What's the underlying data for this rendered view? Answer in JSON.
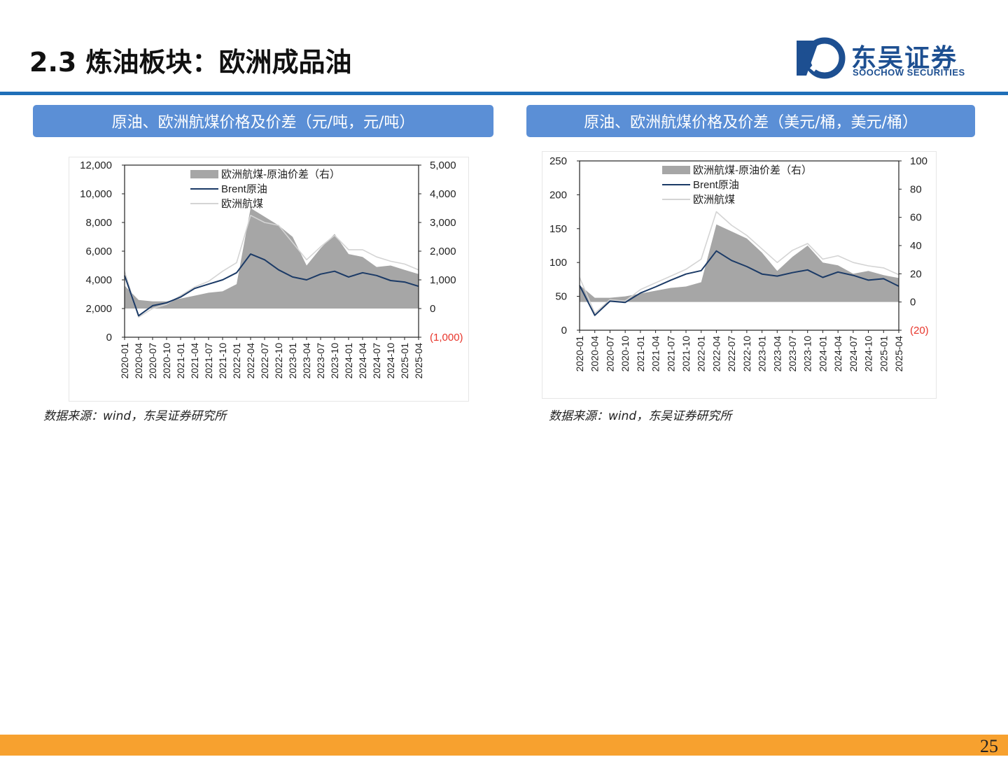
{
  "header": {
    "title": "2.3 炼油板块：欧洲成品油",
    "logo_name": "东吴证券",
    "logo_en": "SOOCHOW SECURITIES"
  },
  "colors": {
    "accent": "#1f6fb8",
    "panel_header": "#5b8fd6",
    "footer_bar": "#f7a12f",
    "brent": "#1b3a66",
    "jet": "#d4d4d4",
    "spread": "#a6a6a6",
    "negative_tick": "#e8352b",
    "logo": "#1d4f91"
  },
  "footer": {
    "page_number": "25"
  },
  "panels": [
    {
      "title": "原油、欧洲航煤价格及价差（元/吨，元/吨）",
      "source": "数据来源：wind，东吴证券研究所"
    },
    {
      "title": "原油、欧洲航煤价格及价差（美元/桶，美元/桶）",
      "source": "数据来源：wind，东吴证券研究所"
    }
  ],
  "chart_data": [
    {
      "type": "line",
      "legend_position": "top-left",
      "grid": false,
      "x": [
        "2020-01",
        "2020-04",
        "2020-07",
        "2020-10",
        "2021-01",
        "2021-04",
        "2021-07",
        "2021-10",
        "2022-01",
        "2022-04",
        "2022-07",
        "2022-10",
        "2023-01",
        "2023-04",
        "2023-07",
        "2023-10",
        "2024-01",
        "2024-04",
        "2024-07",
        "2024-10",
        "2025-01",
        "2025-04"
      ],
      "y_left": {
        "ylim": [
          0,
          12000
        ],
        "ticks": [
          "0",
          "2,000",
          "4,000",
          "6,000",
          "8,000",
          "10,000",
          "12,000"
        ]
      },
      "y_right": {
        "ylim": [
          -1000,
          5000
        ],
        "ticks": [
          "(1,000)",
          "0",
          "1,000",
          "2,000",
          "3,000",
          "4,000",
          "5,000"
        ]
      },
      "series": [
        {
          "name": "欧洲航煤-原油价差（右）",
          "axis": "right",
          "style": "area",
          "values": [
            800,
            300,
            250,
            250,
            350,
            450,
            550,
            600,
            850,
            3500,
            3200,
            2900,
            2500,
            1500,
            2100,
            2600,
            1900,
            1800,
            1450,
            1500,
            1350,
            1200
          ]
        },
        {
          "name": "Brent原油",
          "axis": "left",
          "style": "line",
          "values": [
            4300,
            1500,
            2200,
            2400,
            2800,
            3400,
            3700,
            4000,
            4500,
            5800,
            5400,
            4700,
            4200,
            4000,
            4400,
            4600,
            4200,
            4500,
            4300,
            3950,
            3850,
            3550
          ]
        },
        {
          "name": "欧洲航煤",
          "axis": "left",
          "style": "line",
          "values": [
            4600,
            1400,
            2000,
            2300,
            2900,
            3500,
            3900,
            4600,
            5200,
            8500,
            8000,
            7800,
            6600,
            5400,
            6300,
            7100,
            6100,
            6100,
            5600,
            5300,
            5100,
            4700
          ]
        }
      ]
    },
    {
      "type": "line",
      "legend_position": "top-left",
      "grid": false,
      "x": [
        "2020-01",
        "2020-04",
        "2020-07",
        "2020-10",
        "2021-01",
        "2021-04",
        "2021-07",
        "2021-10",
        "2022-01",
        "2022-04",
        "2022-07",
        "2022-10",
        "2023-01",
        "2023-04",
        "2023-07",
        "2023-10",
        "2024-01",
        "2024-04",
        "2024-07",
        "2024-10",
        "2025-01",
        "2025-04"
      ],
      "y_left": {
        "ylim": [
          0,
          250
        ],
        "ticks": [
          "0",
          "50",
          "100",
          "150",
          "200",
          "250"
        ]
      },
      "y_right": {
        "ylim": [
          -20,
          100
        ],
        "ticks": [
          "(20)",
          "0",
          "20",
          "40",
          "60",
          "80",
          "100"
        ]
      },
      "series": [
        {
          "name": "欧洲航煤-原油价差（右）",
          "axis": "right",
          "style": "area",
          "values": [
            12,
            3,
            3,
            4,
            6,
            8,
            10,
            11,
            14,
            55,
            50,
            45,
            35,
            22,
            32,
            40,
            28,
            26,
            20,
            22,
            19,
            17
          ]
        },
        {
          "name": "Brent原油",
          "axis": "left",
          "style": "line",
          "values": [
            66,
            22,
            43,
            41,
            55,
            64,
            74,
            83,
            88,
            117,
            103,
            94,
            83,
            80,
            85,
            89,
            78,
            86,
            81,
            74,
            76,
            65
          ]
        },
        {
          "name": "欧洲航煤",
          "axis": "left",
          "style": "line",
          "values": [
            78,
            25,
            45,
            43,
            60,
            70,
            80,
            90,
            105,
            175,
            155,
            140,
            120,
            100,
            118,
            128,
            105,
            110,
            100,
            95,
            92,
            82
          ]
        }
      ]
    }
  ]
}
